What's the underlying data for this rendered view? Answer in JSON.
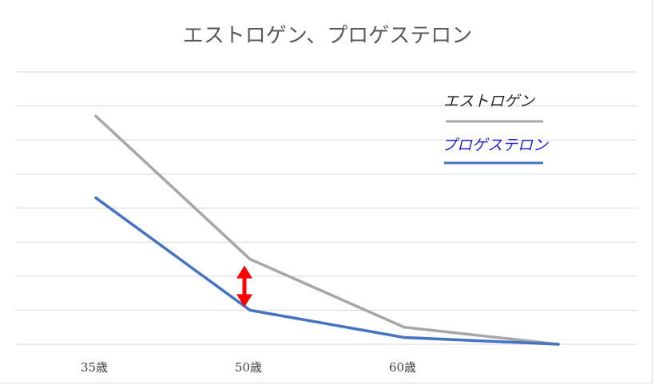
{
  "chart_data": {
    "type": "line",
    "title": "エストロゲン、プロゲステロン",
    "xlabel": "",
    "ylabel": "",
    "categories": [
      "35歳",
      "50歳",
      "60歳",
      ""
    ],
    "series": [
      {
        "name": "エストロゲン",
        "color": "#a6a6a6",
        "values": [
          6.7,
          2.5,
          0.5,
          0.0
        ]
      },
      {
        "name": "プロゲステロン",
        "color": "#4472c4",
        "values": [
          4.3,
          1.0,
          0.2,
          0.0
        ]
      }
    ],
    "ylim": [
      0,
      8
    ],
    "grid": true,
    "legend_position": "top-right",
    "legend_text_colors": [
      "#262626",
      "#1f1fd6"
    ],
    "annotation": {
      "type": "double-arrow",
      "category_index": 1,
      "color": "#ff0000"
    }
  }
}
